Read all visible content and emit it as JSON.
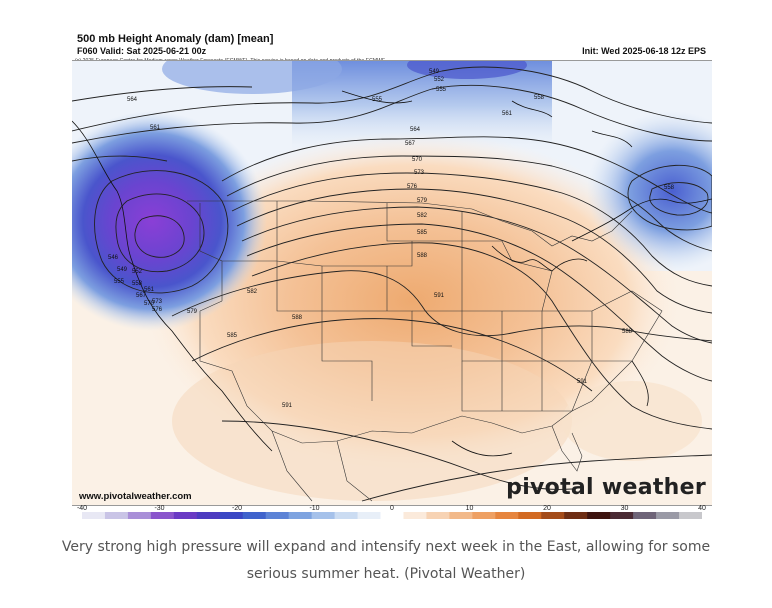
{
  "map": {
    "title": "500 mb Height Anomaly (dam) [mean]",
    "valid": "F060 Valid: Sat 2025-06-21 00z",
    "init": "Init: Wed 2025-06-18 12z EPS",
    "copyright": "(c) 2025 European Centre for Medium-range Weather Forecasts (ECMWF). This service is based on data and products of the ECMWF.",
    "website": "www.pivotalweather.com",
    "brand": "pivotal weather",
    "contour_labels": [
      "549",
      "552",
      "555",
      "558",
      "561",
      "564",
      "567",
      "570",
      "573",
      "576",
      "579",
      "582",
      "585",
      "588",
      "591",
      "555",
      "558",
      "561",
      "546",
      "549",
      "552",
      "555",
      "558",
      "561",
      "564",
      "567",
      "570",
      "573",
      "576",
      "579",
      "582",
      "585",
      "588",
      "591",
      "588",
      "591"
    ],
    "colorbar": {
      "ticks": [
        "-40",
        "-30",
        "-20",
        "-10",
        "0",
        "10",
        "20",
        "30",
        "40"
      ],
      "colors": [
        "#e8e8f4",
        "#c9c4e6",
        "#a98fd8",
        "#8a55cc",
        "#6a3ac4",
        "#4d3bc0",
        "#3a47c4",
        "#3f63cc",
        "#5c83d6",
        "#7ea3e0",
        "#a5c1ea",
        "#cbdcf2",
        "#e8eff8",
        "#ffffff",
        "#fbeadb",
        "#f7d3b4",
        "#f2b98a",
        "#eea063",
        "#e6853e",
        "#d26a22",
        "#a44c1a",
        "#6e2e14",
        "#3e1410",
        "#4a2a34",
        "#6e6478",
        "#9a9aa6",
        "#c8c8cc"
      ]
    }
  },
  "caption": "Very strong high pressure will expand and intensify next week in the East, allowing for some serious summer heat. (Pivotal Weather)"
}
